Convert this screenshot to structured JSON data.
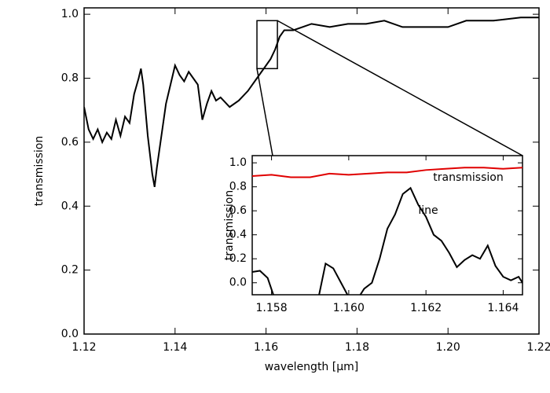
{
  "chart_data": [
    {
      "type": "line",
      "xlabel": "wavelength [μm]",
      "ylabel": "transmission",
      "xlim": [
        1.12,
        1.22
      ],
      "ylim": [
        0,
        1.02
      ],
      "xticks": [
        1.12,
        1.14,
        1.16,
        1.18,
        {
          "value": 1.2,
          "label": "1.20"
        },
        1.22
      ],
      "yticks": [
        {
          "value": 0,
          "label": "0.0"
        },
        {
          "value": 0.2,
          "label": "0.2"
        },
        {
          "value": 0.4,
          "label": "0.4"
        },
        {
          "value": 0.6,
          "label": "0.6"
        },
        {
          "value": 0.8,
          "label": "0.8"
        },
        {
          "value": 1,
          "label": "1.0"
        }
      ],
      "zoom_box": {
        "xlim": [
          1.158,
          1.1625
        ],
        "ylim": [
          0.83,
          0.98
        ]
      },
      "series": [
        {
          "color": "#000000",
          "x": [
            1.12,
            1.121,
            1.122,
            1.123,
            1.124,
            1.125,
            1.126,
            1.127,
            1.128,
            1.129,
            1.13,
            1.131,
            1.132,
            1.1325,
            1.133,
            1.134,
            1.135,
            1.1355,
            1.136,
            1.137,
            1.138,
            1.139,
            1.14,
            1.141,
            1.142,
            1.143,
            1.144,
            1.145,
            1.146,
            1.147,
            1.148,
            1.149,
            1.15,
            1.152,
            1.154,
            1.156,
            1.158,
            1.16,
            1.161,
            1.162,
            1.163,
            1.164,
            1.166,
            1.168,
            1.17,
            1.174,
            1.178,
            1.182,
            1.186,
            1.19,
            1.194,
            1.198,
            1.2,
            1.204,
            1.21,
            1.216,
            1.22
          ],
          "values": [
            0.71,
            0.64,
            0.61,
            0.64,
            0.6,
            0.63,
            0.61,
            0.67,
            0.62,
            0.68,
            0.66,
            0.75,
            0.8,
            0.83,
            0.78,
            0.62,
            0.5,
            0.46,
            0.52,
            0.62,
            0.72,
            0.78,
            0.84,
            0.81,
            0.79,
            0.82,
            0.8,
            0.78,
            0.67,
            0.72,
            0.76,
            0.73,
            0.74,
            0.71,
            0.73,
            0.76,
            0.8,
            0.84,
            0.86,
            0.89,
            0.93,
            0.95,
            0.95,
            0.96,
            0.97,
            0.96,
            0.97,
            0.97,
            0.98,
            0.96,
            0.96,
            0.96,
            0.96,
            0.98,
            0.98,
            0.99,
            0.99
          ]
        }
      ]
    },
    {
      "type": "line",
      "ylabel": "transmission",
      "xlim": [
        1.1575,
        1.1645
      ],
      "ylim": [
        -0.1,
        1.06
      ],
      "xticks": [
        1.158,
        {
          "value": 1.16,
          "label": "1.160"
        },
        1.162,
        1.164
      ],
      "yticks": [
        {
          "value": 0,
          "label": "0.0"
        },
        {
          "value": 0.2,
          "label": "0.2"
        },
        {
          "value": 0.4,
          "label": "0.4"
        },
        {
          "value": 0.6,
          "label": "0.6"
        },
        {
          "value": 0.8,
          "label": "0.8"
        },
        {
          "value": 1,
          "label": "1.0"
        }
      ],
      "series": [
        {
          "name": "transmission",
          "color": "#e00000",
          "x": [
            1.1575,
            1.158,
            1.1585,
            1.159,
            1.1595,
            1.16,
            1.1605,
            1.161,
            1.1615,
            1.162,
            1.1625,
            1.163,
            1.1635,
            1.164,
            1.1645
          ],
          "values": [
            0.89,
            0.9,
            0.88,
            0.88,
            0.91,
            0.9,
            0.91,
            0.92,
            0.92,
            0.94,
            0.95,
            0.96,
            0.96,
            0.95,
            0.96
          ]
        },
        {
          "name": "line",
          "color": "#000000",
          "x": [
            1.1575,
            1.1577,
            1.1579,
            1.1581,
            1.1592,
            1.1594,
            1.1596,
            1.1598,
            1.16,
            1.1602,
            1.1604,
            1.1606,
            1.1608,
            1.161,
            1.1612,
            1.1614,
            1.1616,
            1.1618,
            1.162,
            1.1622,
            1.1624,
            1.1626,
            1.1628,
            1.163,
            1.1632,
            1.1634,
            1.1636,
            1.1638,
            1.164,
            1.1642,
            1.1644,
            1.1646
          ],
          "values": [
            0.09,
            0.1,
            0.04,
            -0.15,
            -0.15,
            0.16,
            0.12,
            0.0,
            -0.12,
            -0.15,
            -0.05,
            0.0,
            0.2,
            0.45,
            0.57,
            0.74,
            0.79,
            0.65,
            0.55,
            0.4,
            0.35,
            0.25,
            0.13,
            0.19,
            0.23,
            0.2,
            0.31,
            0.14,
            0.05,
            0.02,
            0.05,
            -0.05
          ]
        }
      ]
    }
  ]
}
